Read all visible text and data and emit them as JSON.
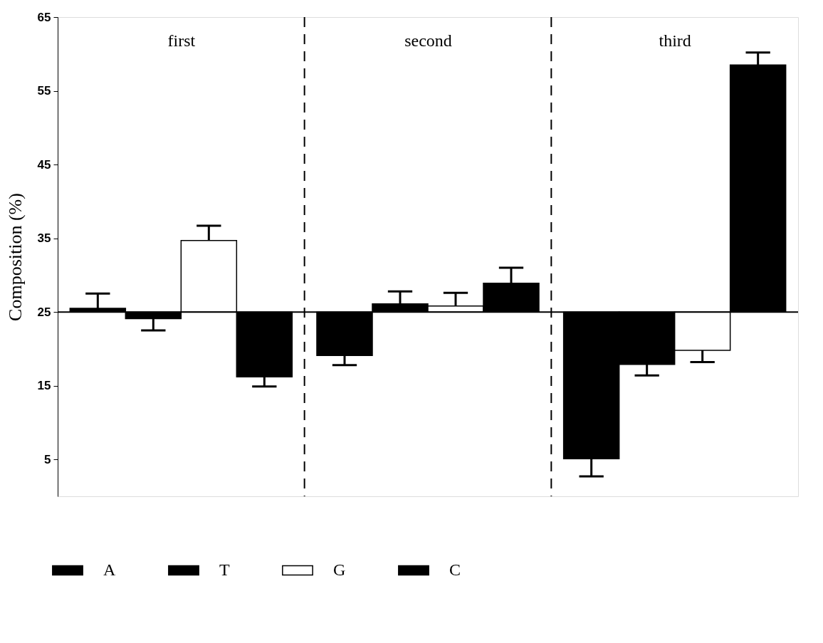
{
  "chart_data": {
    "type": "bar",
    "ylabel": "Composition (%)",
    "categories": [
      "first",
      "second",
      "third"
    ],
    "series": [
      {
        "name": "A",
        "color": "#000000",
        "base": [
          25,
          25,
          25
        ],
        "values": [
          0.5,
          -5.9,
          -19.9
        ],
        "errors": [
          [
            25.5,
            27.5
          ],
          [
            17.8,
            19.1
          ],
          [
            2.7,
            5.1
          ]
        ]
      },
      {
        "name": "T",
        "color": "#000000",
        "base": [
          25,
          25,
          25
        ],
        "values": [
          -0.9,
          1.1,
          -7.1
        ],
        "errors": [
          [
            22.5,
            24.1
          ],
          [
            26.1,
            27.8
          ],
          [
            16.4,
            17.9
          ]
        ]
      },
      {
        "name": "G",
        "color": "#ffffff",
        "base": [
          25,
          25,
          25
        ],
        "values": [
          9.7,
          0.8,
          -5.2
        ],
        "errors": [
          [
            34.7,
            36.7
          ],
          [
            25.8,
            27.6
          ],
          [
            18.2,
            19.8
          ]
        ]
      },
      {
        "name": "C",
        "color": "#000000",
        "base": [
          25,
          25,
          25
        ],
        "values": [
          -8.8,
          3.9,
          33.5
        ],
        "errors": [
          [
            14.9,
            16.2
          ],
          [
            28.9,
            31.0
          ],
          [
            58.5,
            60.2
          ]
        ]
      }
    ],
    "ylim": [
      0,
      65
    ],
    "yticks": [
      5,
      15,
      25,
      35,
      45,
      55,
      65
    ],
    "ref_lines": [
      {
        "axis": "y",
        "value": 25,
        "color": "#000000",
        "line_style": "solid"
      }
    ],
    "grid": false,
    "legend": "bottom"
  }
}
